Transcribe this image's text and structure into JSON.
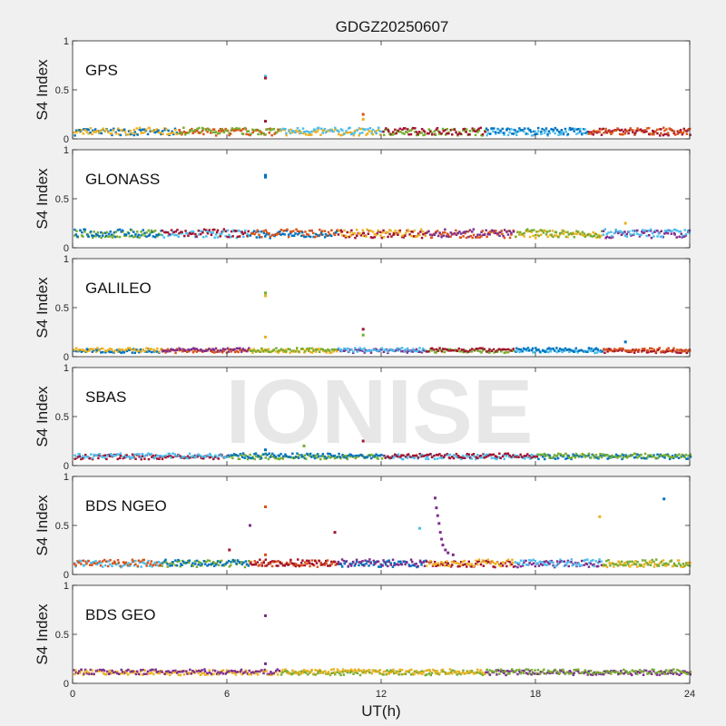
{
  "figure": {
    "title": "GDGZ20250607",
    "xlabel": "UT(h)",
    "watermark": "IONISE"
  },
  "chart_data": {
    "type": "scatter",
    "title": "GDGZ20250607",
    "xlabel": "UT(h)",
    "ylabel": "S4 Index",
    "xlim": [
      0,
      24
    ],
    "xticks": [
      "0",
      "6",
      "12",
      "18",
      "24"
    ],
    "ylim": [
      0,
      1
    ],
    "yticks": [
      "0",
      "0.5",
      "1"
    ],
    "grid": false,
    "colors": [
      "#0072bd",
      "#d95319",
      "#edb120",
      "#7e2f8e",
      "#77ac30",
      "#4dbeee",
      "#a2142f"
    ],
    "panels": [
      {
        "label": "GPS",
        "baseline_mean": 0.08,
        "noise": 0.035,
        "series_colors": [
          "#0072bd",
          "#d95319",
          "#edb120",
          "#77ac30",
          "#4dbeee",
          "#a2142f"
        ],
        "outliers": [
          {
            "x": 7.5,
            "y": 0.64,
            "color": "#4dbeee"
          },
          {
            "x": 7.5,
            "y": 0.62,
            "color": "#a2142f"
          },
          {
            "x": 7.5,
            "y": 0.18,
            "color": "#a2142f"
          },
          {
            "x": 11.3,
            "y": 0.25,
            "color": "#d95319"
          },
          {
            "x": 11.3,
            "y": 0.2,
            "color": "#edb120"
          }
        ]
      },
      {
        "label": "GLONASS",
        "baseline_mean": 0.15,
        "noise": 0.04,
        "series_colors": [
          "#77ac30",
          "#4dbeee",
          "#0072bd",
          "#a2142f",
          "#d95319",
          "#edb120",
          "#7e2f8e"
        ],
        "outliers": [
          {
            "x": 7.5,
            "y": 0.74,
            "color": "#0072bd"
          },
          {
            "x": 7.5,
            "y": 0.72,
            "color": "#0072bd"
          },
          {
            "x": 21.5,
            "y": 0.25,
            "color": "#edb120"
          }
        ]
      },
      {
        "label": "GALILEO",
        "baseline_mean": 0.07,
        "noise": 0.02,
        "series_colors": [
          "#0072bd",
          "#d95319",
          "#edb120",
          "#7e2f8e",
          "#77ac30",
          "#4dbeee",
          "#a2142f"
        ],
        "outliers": [
          {
            "x": 7.5,
            "y": 0.65,
            "color": "#77ac30"
          },
          {
            "x": 7.5,
            "y": 0.62,
            "color": "#edb120"
          },
          {
            "x": 7.5,
            "y": 0.2,
            "color": "#edb120"
          },
          {
            "x": 11.3,
            "y": 0.28,
            "color": "#a2142f"
          },
          {
            "x": 11.3,
            "y": 0.22,
            "color": "#77ac30"
          },
          {
            "x": 21.5,
            "y": 0.15,
            "color": "#0072bd"
          }
        ]
      },
      {
        "label": "SBAS",
        "baseline_mean": 0.1,
        "noise": 0.025,
        "series_colors": [
          "#a2142f",
          "#77ac30",
          "#4dbeee",
          "#0072bd"
        ],
        "outliers": [
          {
            "x": 11.3,
            "y": 0.25,
            "color": "#a2142f"
          },
          {
            "x": 9.0,
            "y": 0.2,
            "color": "#77ac30"
          },
          {
            "x": 7.5,
            "y": 0.16,
            "color": "#0072bd"
          }
        ]
      },
      {
        "label": "BDS NGEO",
        "baseline_mean": 0.12,
        "noise": 0.035,
        "series_colors": [
          "#4dbeee",
          "#77ac30",
          "#d95319",
          "#0072bd",
          "#a2142f",
          "#7e2f8e",
          "#edb120"
        ],
        "outliers": [
          {
            "x": 7.5,
            "y": 0.69,
            "color": "#d95319"
          },
          {
            "x": 6.9,
            "y": 0.5,
            "color": "#7e2f8e"
          },
          {
            "x": 6.1,
            "y": 0.25,
            "color": "#a2142f"
          },
          {
            "x": 10.2,
            "y": 0.43,
            "color": "#a2142f"
          },
          {
            "x": 13.5,
            "y": 0.47,
            "color": "#4dbeee"
          },
          {
            "x": 14.1,
            "y": 0.78,
            "color": "#7e2f8e"
          },
          {
            "x": 14.15,
            "y": 0.68,
            "color": "#7e2f8e"
          },
          {
            "x": 14.2,
            "y": 0.6,
            "color": "#7e2f8e"
          },
          {
            "x": 14.25,
            "y": 0.52,
            "color": "#7e2f8e"
          },
          {
            "x": 14.3,
            "y": 0.43,
            "color": "#7e2f8e"
          },
          {
            "x": 14.35,
            "y": 0.36,
            "color": "#7e2f8e"
          },
          {
            "x": 14.4,
            "y": 0.3,
            "color": "#7e2f8e"
          },
          {
            "x": 14.5,
            "y": 0.25,
            "color": "#7e2f8e"
          },
          {
            "x": 14.6,
            "y": 0.22,
            "color": "#7e2f8e"
          },
          {
            "x": 14.8,
            "y": 0.2,
            "color": "#7e2f8e"
          },
          {
            "x": 20.5,
            "y": 0.59,
            "color": "#edb120"
          },
          {
            "x": 23.0,
            "y": 0.77,
            "color": "#0072bd"
          },
          {
            "x": 7.5,
            "y": 0.2,
            "color": "#d95319"
          }
        ]
      },
      {
        "label": "BDS GEO",
        "baseline_mean": 0.12,
        "noise": 0.025,
        "series_colors": [
          "#edb120",
          "#77ac30",
          "#7e2f8e"
        ],
        "outliers": [
          {
            "x": 7.5,
            "y": 0.69,
            "color": "#7e2f8e"
          },
          {
            "x": 7.5,
            "y": 0.2,
            "color": "#7e2f8e"
          }
        ]
      }
    ]
  }
}
